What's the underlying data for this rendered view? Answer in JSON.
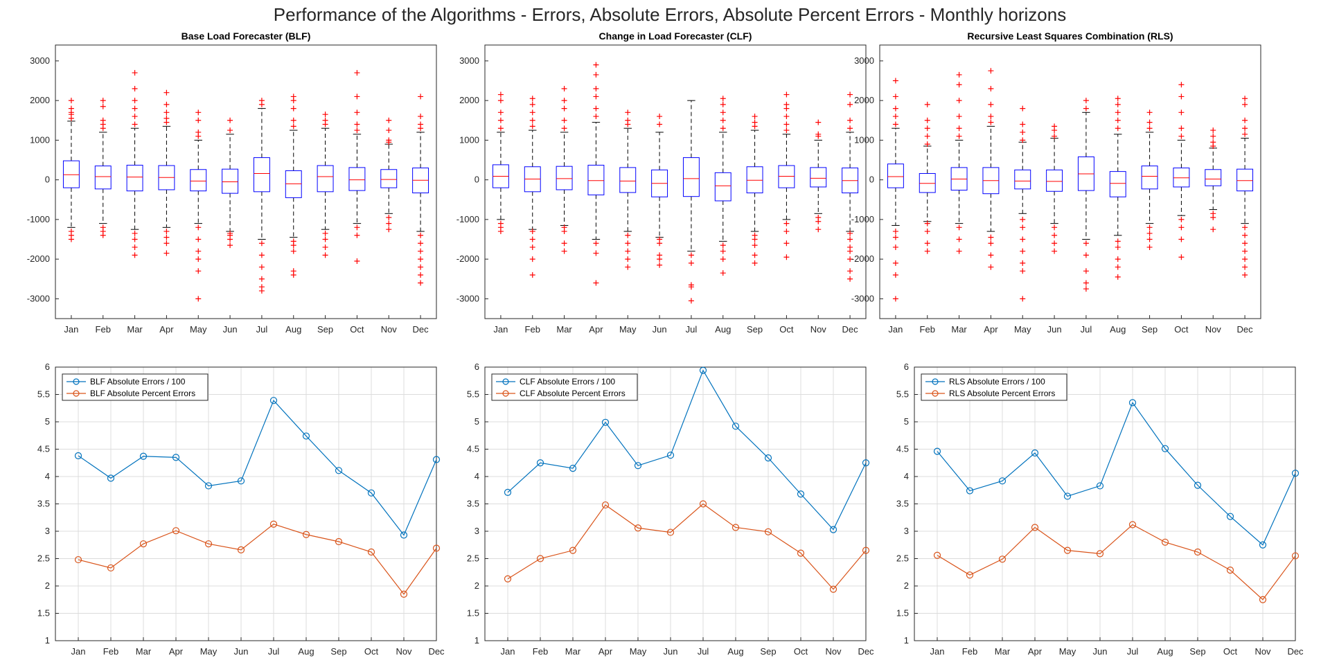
{
  "suptitle": "Performance of the Algorithms - Errors, Absolute Errors, Absolute Percent Errors - Monthly horizons",
  "colors": {
    "box": "#0000ff",
    "median": "#ff0000",
    "whisker": "#000000",
    "outlier": "#ff0000",
    "series_abs": "#0072bd",
    "series_pct": "#d95319",
    "grid": "#dcdcdc",
    "axis": "#262626"
  },
  "chart_data": [
    {
      "type": "boxplot",
      "title": "Base Load Forecaster (BLF)",
      "xlabel": "",
      "ylabel": "",
      "ylim": [
        -3500,
        3400
      ],
      "yticks": [
        -3000,
        -2000,
        -1000,
        0,
        1000,
        2000,
        3000
      ],
      "grid": false,
      "categories": [
        "Jan",
        "Feb",
        "Mar",
        "Apr",
        "May",
        "Jun",
        "Jul",
        "Aug",
        "Sep",
        "Oct",
        "Nov",
        "Dec"
      ],
      "boxes": [
        {
          "q1": -200,
          "median": 130,
          "q3": 480,
          "whisker_low": -1200,
          "whisker_high": 1480,
          "outliers": [
            -1300,
            -1400,
            -1500,
            1550,
            1650,
            1700,
            1800,
            2000
          ]
        },
        {
          "q1": -230,
          "median": 80,
          "q3": 350,
          "whisker_low": -1100,
          "whisker_high": 1200,
          "outliers": [
            -1200,
            -1300,
            -1400,
            1300,
            1400,
            1500,
            1850,
            2000
          ]
        },
        {
          "q1": -280,
          "median": 70,
          "q3": 370,
          "whisker_low": -1250,
          "whisker_high": 1300,
          "outliers": [
            -1350,
            -1500,
            -1700,
            -1900,
            1400,
            1600,
            1800,
            2000,
            2300,
            2700
          ]
        },
        {
          "q1": -250,
          "median": 60,
          "q3": 360,
          "whisker_low": -1200,
          "whisker_high": 1350,
          "outliers": [
            -1300,
            -1450,
            -1600,
            -1850,
            1450,
            1550,
            1700,
            1900,
            2200
          ]
        },
        {
          "q1": -280,
          "median": -30,
          "q3": 260,
          "whisker_low": -1100,
          "whisker_high": 1000,
          "outliers": [
            -1200,
            -1500,
            -1800,
            -2000,
            -2300,
            -3000,
            1100,
            1200,
            1500,
            1700
          ]
        },
        {
          "q1": -340,
          "median": -50,
          "q3": 270,
          "whisker_low": -1300,
          "whisker_high": 1150,
          "outliers": [
            -1350,
            -1400,
            -1500,
            -1650,
            1250,
            1500
          ]
        },
        {
          "q1": -300,
          "median": 160,
          "q3": 560,
          "whisker_low": -1500,
          "whisker_high": 1800,
          "outliers": [
            -1600,
            -1900,
            -2200,
            -2500,
            -2700,
            -2800,
            1900,
            2000
          ]
        },
        {
          "q1": -450,
          "median": -100,
          "q3": 230,
          "whisker_low": -1450,
          "whisker_high": 1250,
          "outliers": [
            -1550,
            -1650,
            -1800,
            -2300,
            -2400,
            1350,
            1500,
            1800,
            2000,
            2100
          ]
        },
        {
          "q1": -300,
          "median": 80,
          "q3": 360,
          "whisker_low": -1250,
          "whisker_high": 1300,
          "outliers": [
            -1350,
            -1500,
            -1700,
            -1900,
            1400,
            1500,
            1650
          ]
        },
        {
          "q1": -270,
          "median": 0,
          "q3": 310,
          "whisker_low": -1100,
          "whisker_high": 1150,
          "outliers": [
            -1200,
            -1400,
            -2050,
            1250,
            1400,
            1700,
            2100,
            2700
          ]
        },
        {
          "q1": -200,
          "median": 10,
          "q3": 260,
          "whisker_low": -850,
          "whisker_high": 900,
          "outliers": [
            -950,
            -1100,
            -1250,
            950,
            1000,
            1250,
            1500
          ]
        },
        {
          "q1": -330,
          "median": -10,
          "q3": 300,
          "whisker_low": -1300,
          "whisker_high": 1200,
          "outliers": [
            -1400,
            -1600,
            -1800,
            -2000,
            -2200,
            -2400,
            -2600,
            1300,
            1400,
            1600,
            2100
          ]
        }
      ]
    },
    {
      "type": "boxplot",
      "title": "Change in Load Forecaster (CLF)",
      "xlabel": "",
      "ylabel": "",
      "ylim": [
        -3500,
        3400
      ],
      "yticks": [
        -3000,
        -2000,
        -1000,
        0,
        1000,
        2000,
        3000
      ],
      "grid": false,
      "categories": [
        "Jan",
        "Feb",
        "Mar",
        "Apr",
        "May",
        "Jun",
        "Jul",
        "Aug",
        "Sep",
        "Oct",
        "Nov",
        "Dec"
      ],
      "boxes": [
        {
          "q1": -200,
          "median": 90,
          "q3": 380,
          "whisker_low": -1000,
          "whisker_high": 1200,
          "outliers": [
            -1100,
            -1200,
            -1300,
            1300,
            1500,
            1700,
            2000,
            2150
          ]
        },
        {
          "q1": -300,
          "median": 20,
          "q3": 330,
          "whisker_low": -1250,
          "whisker_high": 1250,
          "outliers": [
            -1300,
            -1500,
            -1700,
            -2000,
            -2400,
            1350,
            1500,
            1700,
            1900,
            2050
          ]
        },
        {
          "q1": -250,
          "median": 30,
          "q3": 340,
          "whisker_low": -1150,
          "whisker_high": 1200,
          "outliers": [
            -1200,
            -1300,
            -1600,
            -1800,
            1300,
            1500,
            1800,
            2000,
            2300
          ]
        },
        {
          "q1": -380,
          "median": -20,
          "q3": 370,
          "whisker_low": -1500,
          "whisker_high": 1450,
          "outliers": [
            -1600,
            -1850,
            -2600,
            1600,
            1800,
            2100,
            2300,
            2650,
            2900
          ]
        },
        {
          "q1": -320,
          "median": -30,
          "q3": 310,
          "whisker_low": -1300,
          "whisker_high": 1300,
          "outliers": [
            -1400,
            -1600,
            -1800,
            -2000,
            -2200,
            1400,
            1500,
            1700
          ]
        },
        {
          "q1": -430,
          "median": -90,
          "q3": 250,
          "whisker_low": -1450,
          "whisker_high": 1200,
          "outliers": [
            -1500,
            -1600,
            -1900,
            -2000,
            -2150,
            1400,
            1600
          ]
        },
        {
          "q1": -420,
          "median": 30,
          "q3": 560,
          "whisker_low": -1800,
          "whisker_high": 2000,
          "outliers": [
            -1900,
            -2100,
            -2650,
            -2700,
            -3050
          ]
        },
        {
          "q1": -530,
          "median": -150,
          "q3": 180,
          "whisker_low": -1550,
          "whisker_high": 1200,
          "outliers": [
            -1650,
            -1800,
            -2000,
            -2350,
            1300,
            1500,
            1700,
            1900,
            2050
          ]
        },
        {
          "q1": -330,
          "median": -10,
          "q3": 330,
          "whisker_low": -1300,
          "whisker_high": 1250,
          "outliers": [
            -1400,
            -1500,
            -1650,
            -1900,
            -2100,
            1350,
            1450,
            1600
          ]
        },
        {
          "q1": -200,
          "median": 90,
          "q3": 360,
          "whisker_low": -1000,
          "whisker_high": 1150,
          "outliers": [
            -1100,
            -1300,
            -1600,
            -1950,
            1250,
            1400,
            1600,
            1800,
            1900,
            2150
          ]
        },
        {
          "q1": -180,
          "median": 40,
          "q3": 310,
          "whisker_low": -850,
          "whisker_high": 1000,
          "outliers": [
            -950,
            -1050,
            -1250,
            1100,
            1150,
            1450
          ]
        },
        {
          "q1": -330,
          "median": -20,
          "q3": 300,
          "whisker_low": -1300,
          "whisker_high": 1200,
          "outliers": [
            -1350,
            -1500,
            -1700,
            -1800,
            -2000,
            -2300,
            -2500,
            1300,
            1500,
            1900,
            2150
          ]
        }
      ]
    },
    {
      "type": "boxplot",
      "title": "Recursive Least Squares Combination (RLS)",
      "xlabel": "",
      "ylabel": "",
      "ylim": [
        -3500,
        3400
      ],
      "yticks": [
        -3000,
        -2000,
        -1000,
        0,
        1000,
        2000,
        3000
      ],
      "grid": false,
      "categories": [
        "Jan",
        "Feb",
        "Mar",
        "Apr",
        "May",
        "Jun",
        "Jul",
        "Aug",
        "Sep",
        "Oct",
        "Nov",
        "Dec"
      ],
      "boxes": [
        {
          "q1": -200,
          "median": 80,
          "q3": 400,
          "whisker_low": -1150,
          "whisker_high": 1300,
          "outliers": [
            -1300,
            -1450,
            -1700,
            -2100,
            -2400,
            -3000,
            1400,
            1600,
            1800,
            2100,
            2500
          ]
        },
        {
          "q1": -320,
          "median": -90,
          "q3": 160,
          "whisker_low": -1050,
          "whisker_high": 850,
          "outliers": [
            -1100,
            -1300,
            -1600,
            -1800,
            900,
            1100,
            1300,
            1500,
            1900
          ]
        },
        {
          "q1": -260,
          "median": 20,
          "q3": 310,
          "whisker_low": -1100,
          "whisker_high": 1000,
          "outliers": [
            -1200,
            -1500,
            -1800,
            1100,
            1300,
            1600,
            2000,
            2400,
            2650
          ]
        },
        {
          "q1": -350,
          "median": -20,
          "q3": 310,
          "whisker_low": -1300,
          "whisker_high": 1350,
          "outliers": [
            -1450,
            -1600,
            -1900,
            -2200,
            1450,
            1600,
            1900,
            2300,
            2750
          ]
        },
        {
          "q1": -230,
          "median": -30,
          "q3": 250,
          "whisker_low": -850,
          "whisker_high": 950,
          "outliers": [
            -1000,
            -1200,
            -1500,
            -1800,
            -2100,
            -2300,
            -3000,
            1000,
            1200,
            1400,
            1800
          ]
        },
        {
          "q1": -290,
          "median": -40,
          "q3": 250,
          "whisker_low": -1100,
          "whisker_high": 1050,
          "outliers": [
            -1200,
            -1400,
            -1600,
            -1800,
            1100,
            1250,
            1350
          ]
        },
        {
          "q1": -270,
          "median": 150,
          "q3": 580,
          "whisker_low": -1500,
          "whisker_high": 1700,
          "outliers": [
            -1600,
            -1900,
            -2300,
            -2600,
            -2750,
            1800,
            2000
          ]
        },
        {
          "q1": -430,
          "median": -90,
          "q3": 210,
          "whisker_low": -1400,
          "whisker_high": 1150,
          "outliers": [
            -1550,
            -1700,
            -2000,
            -2200,
            -2450,
            1300,
            1500,
            1700,
            1900,
            2050
          ]
        },
        {
          "q1": -230,
          "median": 90,
          "q3": 350,
          "whisker_low": -1100,
          "whisker_high": 1200,
          "outliers": [
            -1200,
            -1350,
            -1500,
            -1700,
            1300,
            1450,
            1700
          ]
        },
        {
          "q1": -180,
          "median": 50,
          "q3": 300,
          "whisker_low": -900,
          "whisker_high": 1000,
          "outliers": [
            -1000,
            -1200,
            -1500,
            -1950,
            1100,
            1300,
            1700,
            2100,
            2400
          ]
        },
        {
          "q1": -150,
          "median": 20,
          "q3": 260,
          "whisker_low": -750,
          "whisker_high": 800,
          "outliers": [
            -850,
            -950,
            -1250,
            850,
            950,
            1100,
            1250
          ]
        },
        {
          "q1": -280,
          "median": -20,
          "q3": 270,
          "whisker_low": -1100,
          "whisker_high": 1050,
          "outliers": [
            -1200,
            -1400,
            -1600,
            -1800,
            -2000,
            -2200,
            -2400,
            1150,
            1300,
            1500,
            1900,
            2050
          ]
        }
      ]
    },
    {
      "type": "line",
      "title": "",
      "xlabel": "",
      "ylabel": "",
      "ylim": [
        1,
        6
      ],
      "yticks": [
        1,
        1.5,
        2,
        2.5,
        3,
        3.5,
        4,
        4.5,
        5,
        5.5,
        6
      ],
      "grid": true,
      "legend": "top-left",
      "categories": [
        "Jan",
        "Feb",
        "Mar",
        "Apr",
        "May",
        "Jun",
        "Jul",
        "Aug",
        "Sep",
        "Oct",
        "Nov",
        "Dec"
      ],
      "series": [
        {
          "name": "BLF Absolute Errors / 100",
          "values": [
            4.38,
            3.97,
            4.37,
            4.35,
            3.83,
            3.92,
            5.39,
            4.74,
            4.11,
            3.7,
            2.93,
            4.31
          ]
        },
        {
          "name": "BLF Absolute Percent Errors",
          "values": [
            2.48,
            2.33,
            2.77,
            3.01,
            2.77,
            2.66,
            3.13,
            2.94,
            2.81,
            2.62,
            1.85,
            2.69
          ]
        }
      ]
    },
    {
      "type": "line",
      "title": "",
      "xlabel": "",
      "ylabel": "",
      "ylim": [
        1,
        6
      ],
      "yticks": [
        1,
        1.5,
        2,
        2.5,
        3,
        3.5,
        4,
        4.5,
        5,
        5.5,
        6
      ],
      "grid": true,
      "legend": "top-left",
      "categories": [
        "Jan",
        "Feb",
        "Mar",
        "Apr",
        "May",
        "Jun",
        "Jul",
        "Aug",
        "Sep",
        "Oct",
        "Nov",
        "Dec"
      ],
      "series": [
        {
          "name": "CLF Absolute Errors / 100",
          "values": [
            3.71,
            4.25,
            4.15,
            4.99,
            4.2,
            4.39,
            5.94,
            4.92,
            4.34,
            3.68,
            3.03,
            4.25
          ]
        },
        {
          "name": "CLF Absolute Percent Errors",
          "values": [
            2.13,
            2.5,
            2.65,
            3.48,
            3.06,
            2.98,
            3.5,
            3.07,
            2.99,
            2.6,
            1.94,
            2.65
          ]
        }
      ]
    },
    {
      "type": "line",
      "title": "",
      "xlabel": "",
      "ylabel": "",
      "ylim": [
        1,
        6
      ],
      "yticks": [
        1,
        1.5,
        2,
        2.5,
        3,
        3.5,
        4,
        4.5,
        5,
        5.5,
        6
      ],
      "grid": true,
      "legend": "top-left",
      "categories": [
        "Jan",
        "Feb",
        "Mar",
        "Apr",
        "May",
        "Jun",
        "Jul",
        "Aug",
        "Sep",
        "Oct",
        "Nov",
        "Dec"
      ],
      "series": [
        {
          "name": "RLS Absolute Errors / 100",
          "values": [
            4.46,
            3.74,
            3.92,
            4.43,
            3.64,
            3.83,
            5.35,
            4.51,
            3.84,
            3.27,
            2.75,
            4.06
          ]
        },
        {
          "name": "RLS Absolute Percent Errors",
          "values": [
            2.56,
            2.2,
            2.49,
            3.07,
            2.65,
            2.59,
            3.12,
            2.8,
            2.62,
            2.29,
            1.75,
            2.55
          ]
        }
      ]
    }
  ]
}
